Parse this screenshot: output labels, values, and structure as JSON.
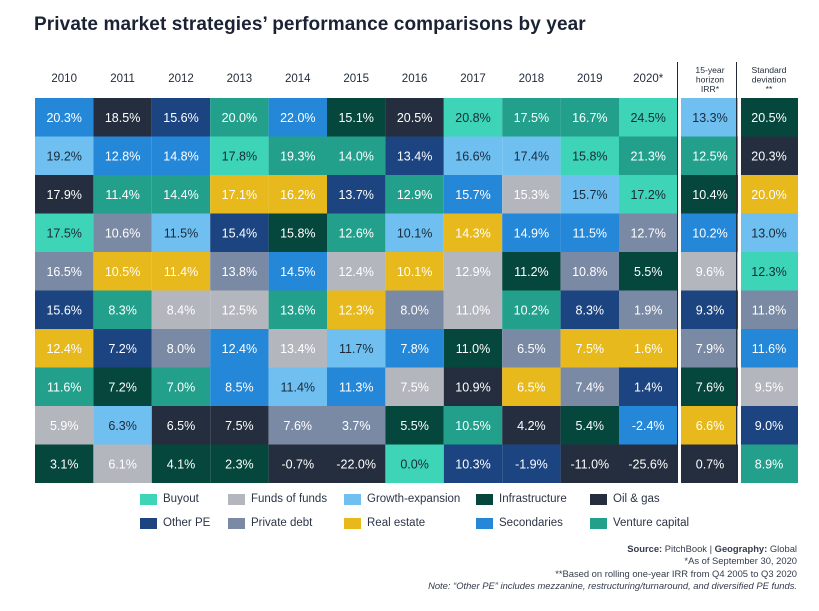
{
  "chart_data": {
    "type": "table",
    "title": "Private market strategies’ performance comparisons by year",
    "columns": [
      "2010",
      "2011",
      "2012",
      "2013",
      "2014",
      "2015",
      "2016",
      "2017",
      "2018",
      "2019",
      "2020*"
    ],
    "extra_columns": [
      {
        "header_lines": [
          "15-year",
          "horizon",
          "IRR*"
        ],
        "key": "horizon"
      },
      {
        "header_lines": [
          "Standard",
          "deviation",
          "**"
        ],
        "key": "stdev"
      }
    ],
    "strategies": {
      "BO": {
        "name": "Buyout",
        "color": "#3dd4b7",
        "text": "#1a2a3a"
      },
      "FF": {
        "name": "Funds of funds",
        "color": "#b3b7bd",
        "text": "#ffffff"
      },
      "GE": {
        "name": "Growth-expansion",
        "color": "#6fbff0",
        "text": "#1a2a3a"
      },
      "IN": {
        "name": "Infrastructure",
        "color": "#06473d",
        "text": "#ffffff"
      },
      "OG": {
        "name": "Oil & gas",
        "color": "#252e3e",
        "text": "#ffffff"
      },
      "OP": {
        "name": "Other PE",
        "color": "#1b4480",
        "text": "#ffffff"
      },
      "PD": {
        "name": "Private debt",
        "color": "#7b8aa4",
        "text": "#ffffff"
      },
      "RE": {
        "name": "Real estate",
        "color": "#e7b91c",
        "text": "#ffffff"
      },
      "SE": {
        "name": "Secondaries",
        "color": "#2587d8",
        "text": "#ffffff"
      },
      "VC": {
        "name": "Venture capital",
        "color": "#22a08c",
        "text": "#ffffff"
      }
    },
    "rows": [
      [
        [
          "SE",
          "20.3%"
        ],
        [
          "OG",
          "18.5%"
        ],
        [
          "OP",
          "15.6%"
        ],
        [
          "VC",
          "20.0%"
        ],
        [
          "SE",
          "22.0%"
        ],
        [
          "IN",
          "15.1%"
        ],
        [
          "OG",
          "20.5%"
        ],
        [
          "BO",
          "20.8%"
        ],
        [
          "VC",
          "17.5%"
        ],
        [
          "VC",
          "16.7%"
        ],
        [
          "BO",
          "24.5%"
        ],
        [
          "GE",
          "13.3%"
        ],
        [
          "IN",
          "20.5%"
        ]
      ],
      [
        [
          "GE",
          "19.2%"
        ],
        [
          "SE",
          "12.8%"
        ],
        [
          "SE",
          "14.8%"
        ],
        [
          "BO",
          "17.8%"
        ],
        [
          "VC",
          "19.3%"
        ],
        [
          "VC",
          "14.0%"
        ],
        [
          "OP",
          "13.4%"
        ],
        [
          "GE",
          "16.6%"
        ],
        [
          "GE",
          "17.4%"
        ],
        [
          "BO",
          "15.8%"
        ],
        [
          "VC",
          "21.3%"
        ],
        [
          "VC",
          "12.5%"
        ],
        [
          "OG",
          "20.3%"
        ]
      ],
      [
        [
          "OG",
          "17.9%"
        ],
        [
          "VC",
          "11.4%"
        ],
        [
          "VC",
          "14.4%"
        ],
        [
          "RE",
          "17.1%"
        ],
        [
          "RE",
          "16.2%"
        ],
        [
          "OP",
          "13.7%"
        ],
        [
          "VC",
          "12.9%"
        ],
        [
          "SE",
          "15.7%"
        ],
        [
          "FF",
          "15.3%"
        ],
        [
          "GE",
          "15.7%"
        ],
        [
          "BO",
          "17.2%"
        ],
        [
          "IN",
          "10.4%"
        ],
        [
          "RE",
          "20.0%"
        ]
      ],
      [
        [
          "BO",
          "17.5%"
        ],
        [
          "PD",
          "10.6%"
        ],
        [
          "GE",
          "11.5%"
        ],
        [
          "OP",
          "15.4%"
        ],
        [
          "IN",
          "15.8%"
        ],
        [
          "VC",
          "12.6%"
        ],
        [
          "GE",
          "10.1%"
        ],
        [
          "RE",
          "14.3%"
        ],
        [
          "SE",
          "14.9%"
        ],
        [
          "SE",
          "11.5%"
        ],
        [
          "PD",
          "12.7%"
        ],
        [
          "SE",
          "10.2%"
        ],
        [
          "GE",
          "13.0%"
        ]
      ],
      [
        [
          "PD",
          "16.5%"
        ],
        [
          "RE",
          "10.5%"
        ],
        [
          "RE",
          "11.4%"
        ],
        [
          "PD",
          "13.8%"
        ],
        [
          "SE",
          "14.5%"
        ],
        [
          "FF",
          "12.4%"
        ],
        [
          "RE",
          "10.1%"
        ],
        [
          "FF",
          "12.9%"
        ],
        [
          "IN",
          "11.2%"
        ],
        [
          "PD",
          "10.8%"
        ],
        [
          "IN",
          "5.5%"
        ],
        [
          "FF",
          "9.6%"
        ],
        [
          "BO",
          "12.3%"
        ]
      ],
      [
        [
          "OP",
          "15.6%"
        ],
        [
          "VC",
          "8.3%"
        ],
        [
          "FF",
          "8.4%"
        ],
        [
          "FF",
          "12.5%"
        ],
        [
          "VC",
          "13.6%"
        ],
        [
          "RE",
          "12.3%"
        ],
        [
          "PD",
          "8.0%"
        ],
        [
          "FF",
          "11.0%"
        ],
        [
          "VC",
          "10.2%"
        ],
        [
          "OP",
          "8.3%"
        ],
        [
          "PD",
          "1.9%"
        ],
        [
          "OP",
          "9.3%"
        ],
        [
          "PD",
          "11.8%"
        ]
      ],
      [
        [
          "RE",
          "12.4%"
        ],
        [
          "OP",
          "7.2%"
        ],
        [
          "PD",
          "8.0%"
        ],
        [
          "SE",
          "12.4%"
        ],
        [
          "FF",
          "13.4%"
        ],
        [
          "GE",
          "11.7%"
        ],
        [
          "SE",
          "7.8%"
        ],
        [
          "IN",
          "11.0%"
        ],
        [
          "PD",
          "6.5%"
        ],
        [
          "RE",
          "7.5%"
        ],
        [
          "RE",
          "1.6%"
        ],
        [
          "PD",
          "7.9%"
        ],
        [
          "SE",
          "11.6%"
        ]
      ],
      [
        [
          "VC",
          "11.6%"
        ],
        [
          "IN",
          "7.2%"
        ],
        [
          "VC",
          "7.0%"
        ],
        [
          "SE",
          "8.5%"
        ],
        [
          "GE",
          "11.4%"
        ],
        [
          "SE",
          "11.3%"
        ],
        [
          "FF",
          "7.5%"
        ],
        [
          "OG",
          "10.9%"
        ],
        [
          "RE",
          "6.5%"
        ],
        [
          "PD",
          "7.4%"
        ],
        [
          "OP",
          "1.4%"
        ],
        [
          "IN",
          "7.6%"
        ],
        [
          "FF",
          "9.5%"
        ]
      ],
      [
        [
          "FF",
          "5.9%"
        ],
        [
          "GE",
          "6.3%"
        ],
        [
          "OG",
          "6.5%"
        ],
        [
          "OG",
          "7.5%"
        ],
        [
          "PD",
          "7.6%"
        ],
        [
          "PD",
          "3.7%"
        ],
        [
          "IN",
          "5.5%"
        ],
        [
          "VC",
          "10.5%"
        ],
        [
          "OG",
          "4.2%"
        ],
        [
          "IN",
          "5.4%"
        ],
        [
          "SE",
          "-2.4%"
        ],
        [
          "RE",
          "6.6%"
        ],
        [
          "OP",
          "9.0%"
        ]
      ],
      [
        [
          "IN",
          "3.1%"
        ],
        [
          "FF",
          "6.1%"
        ],
        [
          "IN",
          "4.1%"
        ],
        [
          "IN",
          "2.3%"
        ],
        [
          "OG",
          "-0.7%"
        ],
        [
          "OG",
          "-22.0%"
        ],
        [
          "BO",
          "0.0%"
        ],
        [
          "OP",
          "10.3%"
        ],
        [
          "OP",
          "-1.9%"
        ],
        [
          "OG",
          "-11.0%"
        ],
        [
          "OG",
          "-25.6%"
        ],
        [
          "OG",
          "0.7%"
        ],
        [
          "VC",
          "8.9%"
        ]
      ]
    ],
    "legend_order": [
      [
        "BO",
        "FF",
        "GE",
        "IN",
        "OG"
      ],
      [
        "OP",
        "PD",
        "RE",
        "SE",
        "VC"
      ]
    ]
  },
  "notes": {
    "source_label": "Source:",
    "source_value": "PitchBook",
    "separator": " | ",
    "geography_label": "Geography:",
    "geography_value": "Global",
    "asof": "*As of September 30, 2020",
    "rolling": "**Based on rolling one-year IRR from Q4 2005 to Q3 2020",
    "note": "Note: “Other PE” includes mezzanine, restructuring/turnaround, and diversified PE funds."
  }
}
